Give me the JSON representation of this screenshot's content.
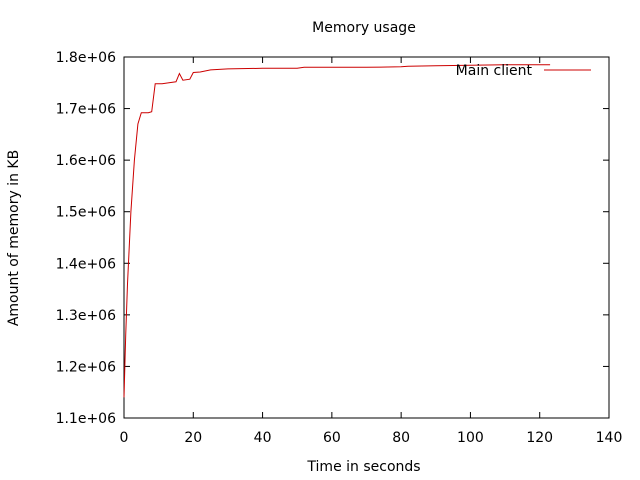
{
  "chart_data": {
    "type": "line",
    "title": "Memory usage",
    "xlabel": "Time in seconds",
    "ylabel": "Amount of memory in KB",
    "xlim": [
      0,
      140
    ],
    "ylim": [
      1100000,
      1800000
    ],
    "x_ticks": [
      0,
      20,
      40,
      60,
      80,
      100,
      120,
      140
    ],
    "x_tick_labels": [
      "0",
      "20",
      "40",
      "60",
      "80",
      "100",
      "120",
      "140"
    ],
    "y_ticks": [
      1100000,
      1200000,
      1300000,
      1400000,
      1500000,
      1600000,
      1700000,
      1800000
    ],
    "y_tick_labels": [
      "1.1e+06",
      "1.2e+06",
      "1.3e+06",
      "1.4e+06",
      "1.5e+06",
      "1.6e+06",
      "1.7e+06",
      "1.8e+06"
    ],
    "grid": false,
    "legend_position": "top-right",
    "series": [
      {
        "name": "Main client",
        "color": "#cc0000",
        "x": [
          0,
          0.5,
          1,
          2,
          3,
          4,
          5,
          7,
          8,
          9,
          11,
          13,
          15,
          16,
          17,
          19,
          20,
          22,
          25,
          30,
          40,
          50,
          52,
          60,
          70,
          80,
          82,
          90,
          100,
          110,
          120,
          123
        ],
        "y": [
          1140000,
          1260000,
          1360000,
          1500000,
          1600000,
          1670000,
          1692000,
          1692000,
          1694000,
          1748000,
          1748000,
          1750000,
          1752000,
          1768000,
          1755000,
          1757000,
          1770000,
          1771000,
          1775000,
          1777000,
          1778000,
          1778000,
          1780000,
          1780000,
          1780000,
          1781000,
          1782000,
          1783000,
          1784000,
          1785000,
          1785000,
          1785000
        ]
      }
    ]
  }
}
